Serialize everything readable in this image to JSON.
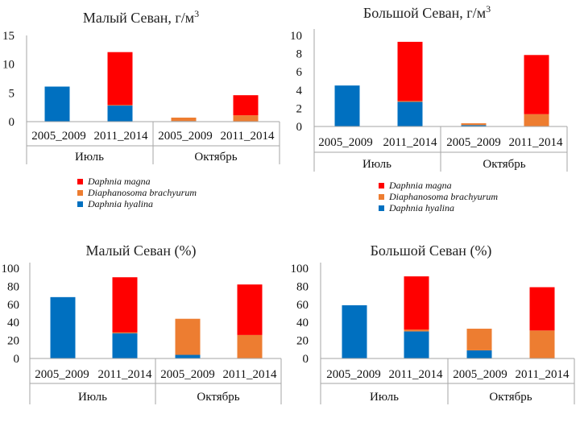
{
  "colors": {
    "daphnia_magna": "#ff0000",
    "diaphanosoma": "#ed7d31",
    "daphnia_hyalina": "#0070c0",
    "axis": "#a6a6a6"
  },
  "legend": {
    "daphnia_magna": "Daphnia magna",
    "diaphanosoma": "Diaphanosoma brachyurum",
    "daphnia_hyalina": "Daphnia hyalina"
  },
  "chart_data": [
    {
      "type": "bar",
      "stacked": true,
      "title_main": "Малый Севан, г/м",
      "title_sup": "3",
      "groups": [
        "Июль",
        "Октябрь"
      ],
      "categories": [
        "2005_2009",
        "2011_2014",
        "2005_2009",
        "2011_2014"
      ],
      "ylim": [
        0,
        15
      ],
      "yticks": [
        "0",
        "5",
        "10",
        "15"
      ],
      "series": [
        {
          "name": "Daphnia hyalina",
          "values": [
            6.1,
            2.8,
            0.1,
            0
          ]
        },
        {
          "name": "Diaphanosoma brachyurum",
          "values": [
            0,
            0.1,
            0.6,
            1.1
          ]
        },
        {
          "name": "Daphnia magna",
          "values": [
            0,
            9.2,
            0,
            3.5
          ]
        }
      ]
    },
    {
      "type": "bar",
      "stacked": true,
      "title_main": "Большой Севан, г/м",
      "title_sup": "3",
      "groups": [
        "Июль",
        "Октябрь"
      ],
      "categories": [
        "2005_2009",
        "2011_2014",
        "2005_2009",
        "2011_2014"
      ],
      "ylim": [
        0,
        10
      ],
      "yticks": [
        "0",
        "2",
        "4",
        "6",
        "8",
        "10"
      ],
      "series": [
        {
          "name": "Daphnia hyalina",
          "values": [
            4.5,
            2.7,
            0.15,
            0
          ]
        },
        {
          "name": "Diaphanosoma brachyurum",
          "values": [
            0,
            0.1,
            0.2,
            1.35
          ]
        },
        {
          "name": "Daphnia magna",
          "values": [
            0,
            6.5,
            0,
            6.5
          ]
        }
      ]
    },
    {
      "type": "bar",
      "stacked": true,
      "title_main": "Малый Севан (%)",
      "title_sup": "",
      "groups": [
        "Июль",
        "Октябрь"
      ],
      "categories": [
        "2005_2009",
        "2011_2014",
        "2005_2009",
        "2011_2014"
      ],
      "ylim": [
        0,
        100
      ],
      "yticks": [
        "0",
        "20",
        "40",
        "60",
        "80",
        "100"
      ],
      "series": [
        {
          "name": "Daphnia hyalina",
          "values": [
            68,
            28,
            4,
            0
          ]
        },
        {
          "name": "Diaphanosoma brachyurum",
          "values": [
            0,
            1,
            40,
            26
          ]
        },
        {
          "name": "Daphnia magna",
          "values": [
            0,
            61,
            0,
            56
          ]
        }
      ]
    },
    {
      "type": "bar",
      "stacked": true,
      "title_main": "Большой Севан (%)",
      "title_sup": "",
      "groups": [
        "Июль",
        "Октябрь"
      ],
      "categories": [
        "2005_2009",
        "2011_2014",
        "2005_2009",
        "2011_2014"
      ],
      "ylim": [
        0,
        100
      ],
      "yticks": [
        "0",
        "20",
        "40",
        "60",
        "80",
        "100"
      ],
      "series": [
        {
          "name": "Daphnia hyalina",
          "values": [
            59,
            30,
            9,
            0
          ]
        },
        {
          "name": "Diaphanosoma brachyurum",
          "values": [
            0,
            2,
            24,
            31
          ]
        },
        {
          "name": "Daphnia magna",
          "values": [
            0,
            59,
            0,
            48
          ]
        }
      ]
    }
  ]
}
